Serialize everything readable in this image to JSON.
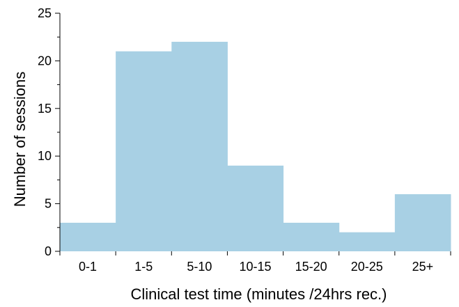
{
  "chart_data": {
    "type": "bar",
    "categories": [
      "0-1",
      "1-5",
      "5-10",
      "10-15",
      "15-20",
      "20-25",
      "25+"
    ],
    "values": [
      3,
      21,
      22,
      9,
      3,
      2,
      6
    ],
    "xlabel": "Clinical test time (minutes /24hrs rec.)",
    "ylabel": "Number of sessions",
    "ylim": [
      0,
      25
    ],
    "yticks": [
      0,
      5,
      10,
      15,
      20,
      25
    ],
    "grid": false,
    "bar_color": "#a8d0e4"
  }
}
